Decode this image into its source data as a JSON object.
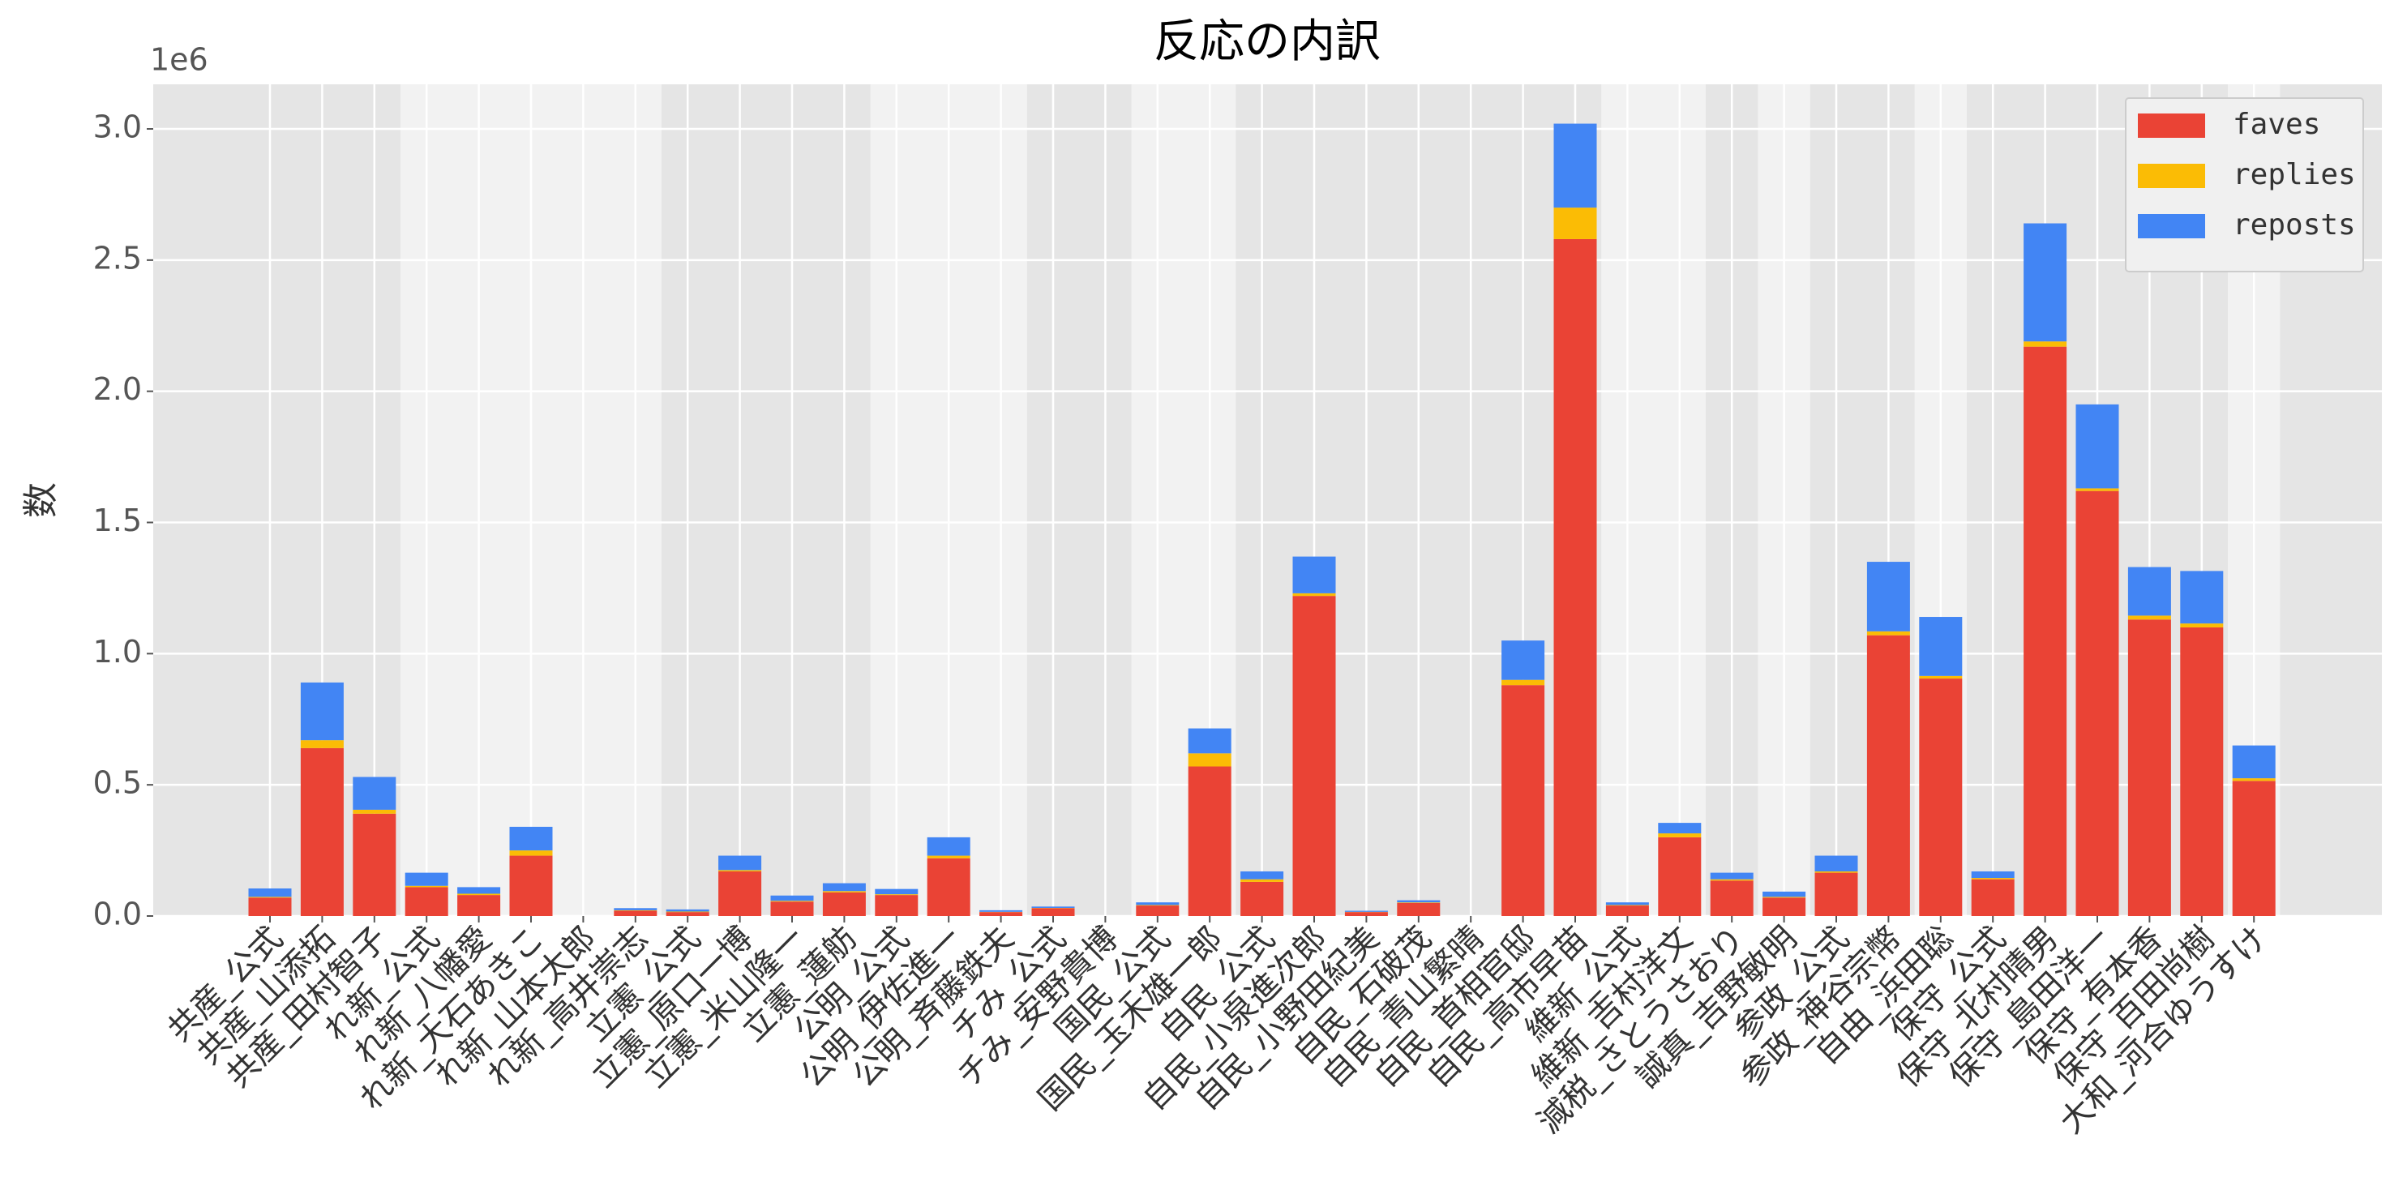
{
  "chart_data": {
    "type": "stacked_bar",
    "title": "反応の内訳",
    "y_label": "数",
    "y_offset_label": "1e6",
    "categories": [
      "共産_公式",
      "共産_山添拓",
      "共産_田村智子",
      "れ新_公式",
      "れ新_八幡愛",
      "れ新_大石あきこ",
      "れ新_山本太郎",
      "れ新_高井崇志",
      "立憲_公式",
      "立憲_原口一博",
      "立憲_米山隆一",
      "立憲_蓮舫",
      "公明_公式",
      "公明_伊佐進一",
      "公明_斉藤鉄夫",
      "チみ_公式",
      "チみ_安野貴博",
      "国民_公式",
      "国民_玉木雄一郎",
      "自民_公式",
      "自民_小泉進次郎",
      "自民_小野田紀美",
      "自民_石破茂",
      "自民_青山繁晴",
      "自民_首相官邸",
      "自民_高市早苗",
      "維新_公式",
      "維新_吉村洋文",
      "減税_さとうさおり",
      "誠真_吉野敏明",
      "参政_公式",
      "参政_神谷宗幣",
      "自由_浜田聡",
      "保守_公式",
      "保守_北村晴男",
      "保守_島田洋一",
      "保守_有本香",
      "保守_百田尚樹",
      "大和_河合ゆうすけ"
    ],
    "series": [
      {
        "name": "faves",
        "color": "#ea4335",
        "values": [
          70000,
          640000,
          390000,
          110000,
          80000,
          230000,
          0,
          20000,
          15000,
          170000,
          55000,
          90000,
          80000,
          220000,
          15000,
          30000,
          0,
          40000,
          570000,
          130000,
          1220000,
          15000,
          50000,
          0,
          880000,
          2580000,
          40000,
          300000,
          135000,
          70000,
          165000,
          1070000,
          905000,
          140000,
          2170000,
          1620000,
          1130000,
          1100000,
          515000
        ]
      },
      {
        "name": "replies",
        "color": "#fbbc05",
        "values": [
          3000,
          30000,
          15000,
          5000,
          5000,
          20000,
          0,
          2000,
          2000,
          5000,
          3000,
          5000,
          3000,
          10000,
          1000,
          1000,
          0,
          2000,
          50000,
          10000,
          10000,
          1000,
          2000,
          0,
          20000,
          120000,
          2000,
          15000,
          5000,
          3000,
          5000,
          15000,
          10000,
          5000,
          20000,
          10000,
          15000,
          15000,
          10000
        ]
      },
      {
        "name": "reposts",
        "color": "#4285f4",
        "values": [
          32000,
          220000,
          125000,
          50000,
          25000,
          90000,
          0,
          8000,
          8000,
          55000,
          20000,
          30000,
          20000,
          70000,
          6000,
          5000,
          0,
          10000,
          95000,
          30000,
          140000,
          4000,
          8000,
          0,
          150000,
          320000,
          10000,
          40000,
          25000,
          20000,
          60000,
          265000,
          225000,
          25000,
          450000,
          320000,
          185000,
          200000,
          125000
        ]
      }
    ],
    "ylim": [
      0,
      3170000
    ],
    "yticks": [
      {
        "value": 0,
        "label": "0.0"
      },
      {
        "value": 500000,
        "label": "0.5"
      },
      {
        "value": 1000000,
        "label": "1.0"
      },
      {
        "value": 1500000,
        "label": "1.5"
      },
      {
        "value": 2000000,
        "label": "2.0"
      },
      {
        "value": 2500000,
        "label": "2.5"
      },
      {
        "value": 3000000,
        "label": "3.0"
      }
    ],
    "grid": true,
    "legend": "upper right"
  }
}
